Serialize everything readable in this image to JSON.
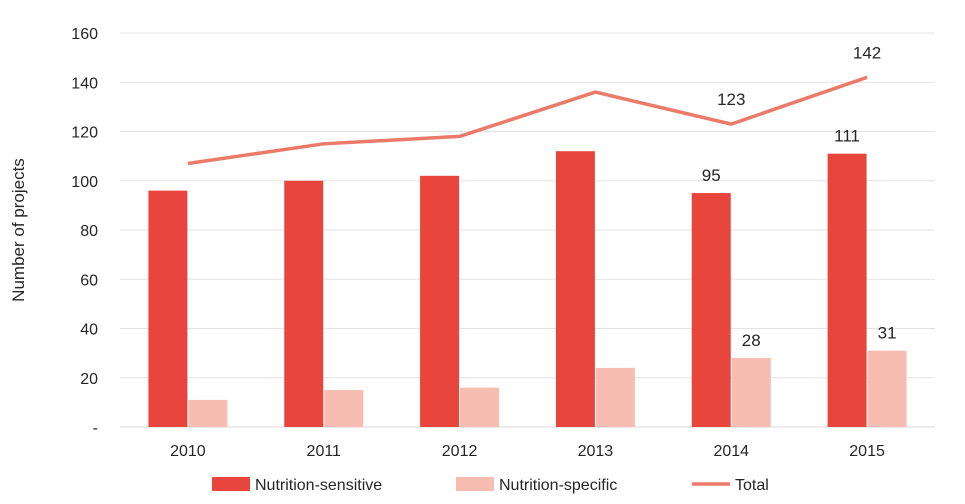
{
  "chart_data": {
    "type": "bar",
    "title": "",
    "xlabel": "",
    "ylabel": "Number of projects",
    "categories": [
      "2010",
      "2011",
      "2012",
      "2013",
      "2014",
      "2015"
    ],
    "ylim": [
      0,
      160
    ],
    "yticks": [
      0,
      20,
      40,
      60,
      80,
      100,
      120,
      140,
      160
    ],
    "ytick_labels": [
      "-",
      "20",
      "40",
      "60",
      "80",
      "100",
      "120",
      "140",
      "160"
    ],
    "grid": true,
    "legend_position": "bottom",
    "series": [
      {
        "name": "Nutrition-sensitive",
        "type": "bar",
        "color": "#e8453c",
        "values": [
          96,
          100,
          102,
          112,
          95,
          111
        ],
        "data_labels": [
          null,
          null,
          null,
          null,
          "95",
          "111"
        ]
      },
      {
        "name": "Nutrition-specific",
        "type": "bar",
        "color": "#f7bcb2",
        "values": [
          11,
          15,
          16,
          24,
          28,
          31
        ],
        "data_labels": [
          null,
          null,
          null,
          null,
          "28",
          "31"
        ]
      },
      {
        "name": "Total",
        "type": "line",
        "color": "#eb7a68",
        "values": [
          107,
          115,
          118,
          136,
          123,
          142
        ],
        "data_labels": [
          null,
          null,
          null,
          null,
          "123",
          "142"
        ]
      }
    ]
  }
}
